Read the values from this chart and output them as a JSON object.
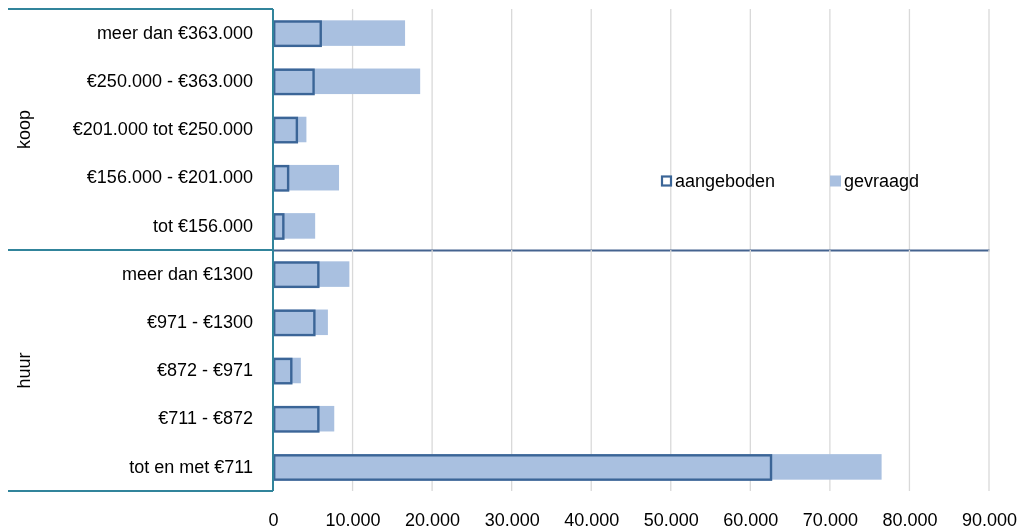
{
  "chart_data": [
    {
      "type": "bar",
      "orientation": "horizontal",
      "ylabel": "koop",
      "categories": [
        "meer dan €363.000",
        "€250.000 - €363.000",
        "€201.000 tot €250.000",
        "€156.000 - €201.000",
        "tot €156.000"
      ],
      "series": [
        {
          "name": "aangeboden",
          "color": "#3b6597",
          "values": [
            6000,
            5100,
            3000,
            1900,
            1300
          ]
        },
        {
          "name": "gevraagd",
          "color": "#a9c0e0",
          "values": [
            16600,
            18500,
            4200,
            8300,
            5300
          ]
        }
      ],
      "xlim": [
        0,
        90000
      ],
      "xticks": [
        0,
        10000,
        20000,
        30000,
        40000,
        50000,
        60000,
        70000,
        80000,
        90000
      ],
      "grid": "x",
      "legend": "bottom right",
      "tick_labels": "y"
    },
    {
      "type": "bar",
      "orientation": "horizontal",
      "ylabel": "huur",
      "categories": [
        "meer dan €1300",
        "€971 - €1300",
        "€872 - €971",
        "€711 - €872",
        "tot en met €711"
      ],
      "series": [
        {
          "color": "#3b6597",
          "values": [
            5700,
            5200,
            2300,
            5700,
            62600
          ]
        },
        {
          "color": "#a9c0e0",
          "values": [
            9600,
            6900,
            3500,
            7700,
            76500
          ]
        }
      ],
      "xlim": [
        0,
        90000
      ],
      "xticks": [
        0,
        {
          "value": 10000,
          "label": "10.000"
        },
        {
          "value": 20000,
          "label": "20.000"
        },
        {
          "value": 30000,
          "label": "30.000"
        },
        {
          "value": 40000,
          "label": "40.000"
        },
        {
          "value": 50000,
          "label": "50.000"
        },
        {
          "value": 60000,
          "label": "60.000"
        },
        {
          "value": 70000,
          "label": "70.000"
        },
        {
          "value": 80000,
          "label": "80.000"
        },
        {
          "value": 90000,
          "label": "90.000"
        }
      ],
      "grid": "x"
    }
  ]
}
